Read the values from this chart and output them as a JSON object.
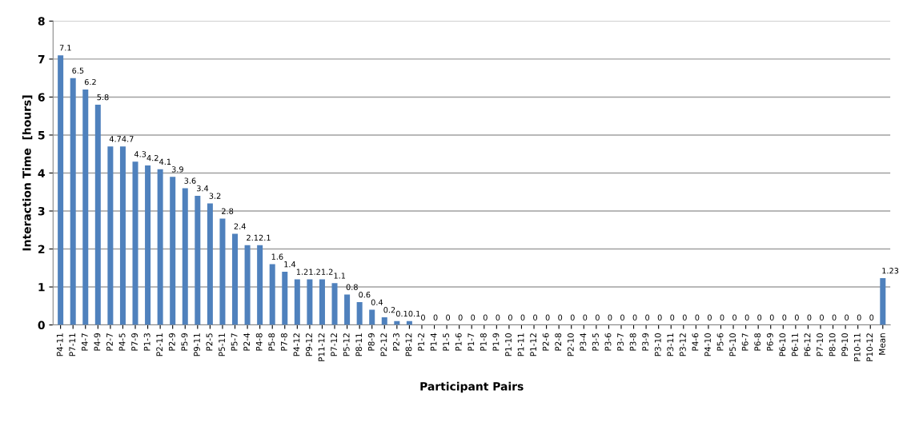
{
  "chart_data": {
    "type": "bar",
    "xlabel": "Participant Pairs",
    "ylabel": "Interaction Time  [hours]",
    "categories": [
      "P4-11",
      "P7-11",
      "P4-7",
      "P4-9",
      "P2-7",
      "P4-5",
      "P7-9",
      "P1-3",
      "P2-11",
      "P2-9",
      "P5-9",
      "P9-11",
      "P2-5",
      "P5-11",
      "P5-7",
      "P2-4",
      "P4-8",
      "P5-8",
      "P7-8",
      "P4-12",
      "P9-12",
      "P11-12",
      "P7-12",
      "P5-12",
      "P8-11",
      "P8-9",
      "P2-12",
      "P2-3",
      "P8-12",
      "P1-2",
      "P1-4",
      "P1-5",
      "P1-6",
      "P1-7",
      "P1-8",
      "P1-9",
      "P1-10",
      "P1-11",
      "P1-12",
      "P2-6",
      "P2-8",
      "P2-10",
      "P3-4",
      "P3-5",
      "P3-6",
      "P3-7",
      "P3-8",
      "P3-9",
      "P3-10",
      "P3-11",
      "P3-12",
      "P4-6",
      "P4-10",
      "P5-6",
      "P5-10",
      "P6-7",
      "P6-8",
      "P6-9",
      "P6-10",
      "P6-11",
      "P6-12",
      "P7-10",
      "P8-10",
      "P9-10",
      "P10-11",
      "P10-12",
      "Mean"
    ],
    "values": [
      7.1,
      6.5,
      6.2,
      5.8,
      4.7,
      4.7,
      4.3,
      4.2,
      4.1,
      3.9,
      3.6,
      3.4,
      3.2,
      2.8,
      2.4,
      2.1,
      2.1,
      1.6,
      1.4,
      1.2,
      1.2,
      1.2,
      1.1,
      0.8,
      0.6,
      0.4,
      0.2,
      0.1,
      0.1,
      0,
      0,
      0,
      0,
      0,
      0,
      0,
      0,
      0,
      0,
      0,
      0,
      0,
      0,
      0,
      0,
      0,
      0,
      0,
      0,
      0,
      0,
      0,
      0,
      0,
      0,
      0,
      0,
      0,
      0,
      0,
      0,
      0,
      0,
      0,
      0,
      0,
      1.23
    ],
    "color": "#4f81bd",
    "ylim": [
      0,
      8
    ],
    "yticks": [
      0,
      1,
      2,
      3,
      4,
      5,
      6,
      7,
      8
    ],
    "grid": "y",
    "data_labels": true,
    "legend": false
  }
}
